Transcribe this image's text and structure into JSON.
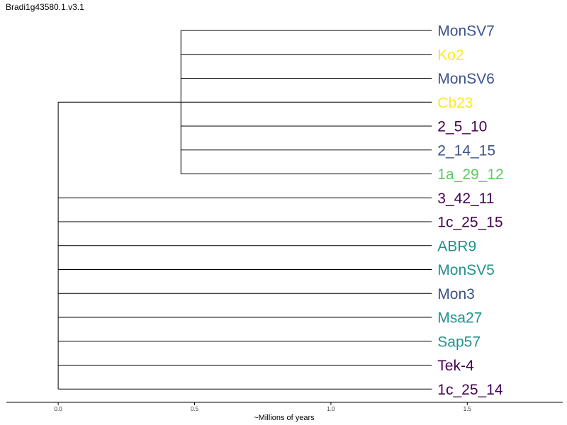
{
  "title": "Bradi1g43580.1.v3.1",
  "chart_data": {
    "type": "dendrogram",
    "xlabel": "~Millions of years",
    "xlim": [
      -0.19,
      1.85
    ],
    "xticks": [
      {
        "value": 0.0,
        "label": "0.0"
      },
      {
        "value": 0.5,
        "label": "0.5"
      },
      {
        "value": 1.0,
        "label": "1.0"
      },
      {
        "value": 1.5,
        "label": "1.5"
      }
    ],
    "root_x": 0.0,
    "leaf_x": 1.37,
    "clades": [
      {
        "x": 0.45,
        "leaves": [
          0,
          1,
          2,
          3,
          4,
          5,
          6
        ]
      }
    ],
    "leaves": [
      {
        "label": "MonSV7",
        "color": "#3b528b"
      },
      {
        "label": "Ko2",
        "color": "#fde725"
      },
      {
        "label": "MonSV6",
        "color": "#3b528b"
      },
      {
        "label": "Cb23",
        "color": "#fde725"
      },
      {
        "label": "2_5_10",
        "color": "#440154"
      },
      {
        "label": "2_14_15",
        "color": "#3b528b"
      },
      {
        "label": "1a_29_12",
        "color": "#5ec962"
      },
      {
        "label": "3_42_11",
        "color": "#440154"
      },
      {
        "label": "1c_25_15",
        "color": "#440154"
      },
      {
        "label": "ABR9",
        "color": "#21918c"
      },
      {
        "label": "MonSV5",
        "color": "#21918c"
      },
      {
        "label": "Mon3",
        "color": "#3b528b"
      },
      {
        "label": "Msa27",
        "color": "#21918c"
      },
      {
        "label": "Sap57",
        "color": "#21918c"
      },
      {
        "label": "Tek-4",
        "color": "#440154"
      },
      {
        "label": "1c_25_14",
        "color": "#440154"
      }
    ]
  }
}
